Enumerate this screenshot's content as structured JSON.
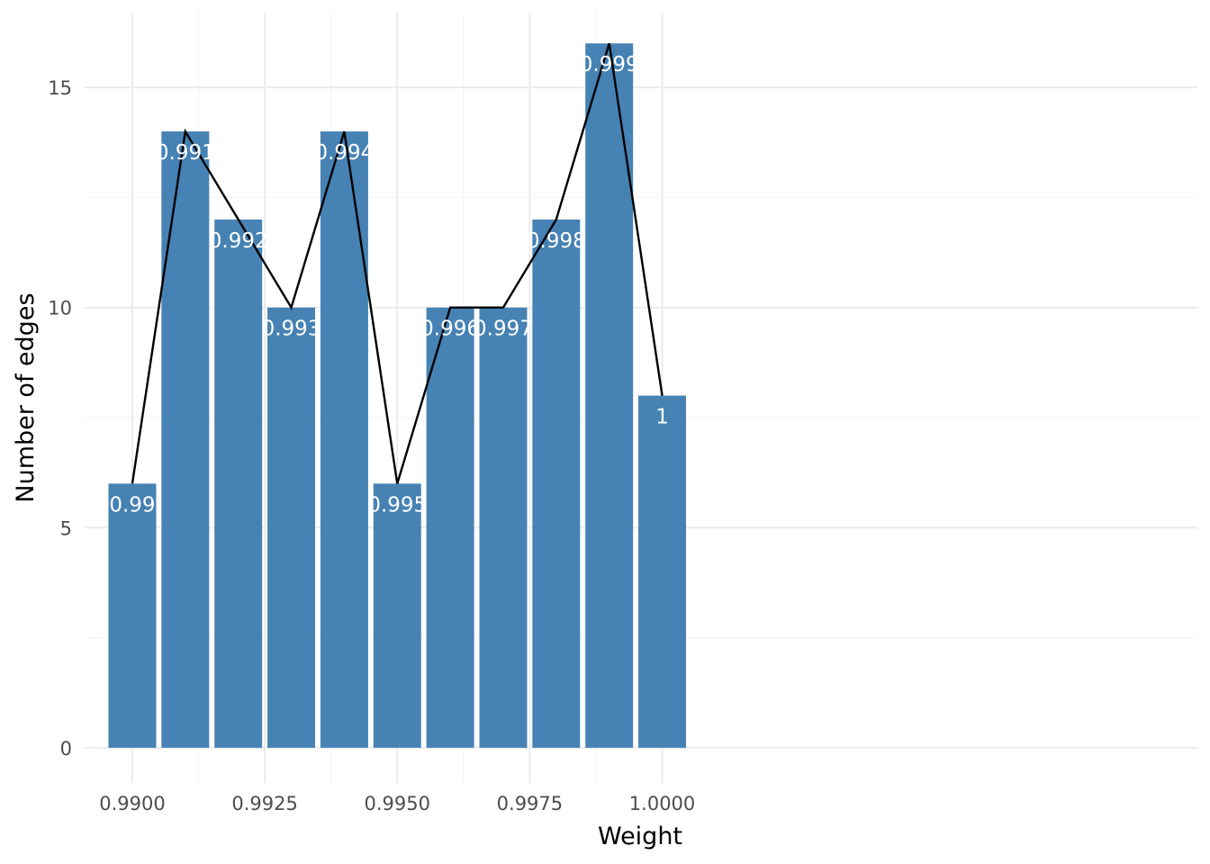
{
  "chart_data": {
    "type": "bar",
    "title": "",
    "xlabel": "Weight",
    "ylabel": "Number of edges",
    "x": [
      0.99,
      0.991,
      0.992,
      0.993,
      0.994,
      0.995,
      0.996,
      0.997,
      0.998,
      0.999,
      1.0
    ],
    "values": [
      6,
      14,
      12,
      10,
      14,
      6,
      10,
      10,
      12,
      16,
      8
    ],
    "bar_labels": [
      "0.99",
      "0.991",
      "0.992",
      "0.993",
      "0.994",
      "0.995",
      "0.996",
      "0.997",
      "0.998",
      "0.999",
      "1"
    ],
    "overlay_line": {
      "type": "line",
      "values": [
        6,
        14,
        12,
        10,
        14,
        6,
        10,
        10,
        12,
        16,
        8
      ],
      "color": "#000000"
    },
    "x_ticks": [
      0.99,
      0.9925,
      0.995,
      0.9975,
      1.0
    ],
    "x_tick_labels": [
      "0.9900",
      "0.9925",
      "0.9950",
      "0.9975",
      "1.0000"
    ],
    "y_ticks": [
      0,
      5,
      10,
      15
    ],
    "y_tick_labels": [
      "0",
      "5",
      "10",
      "15"
    ],
    "xlim": [
      0.9891,
      1.0101
    ],
    "ylim": [
      -0.8,
      16.7
    ],
    "bar_color": "#4682b4",
    "grid": true,
    "legend": "none"
  }
}
